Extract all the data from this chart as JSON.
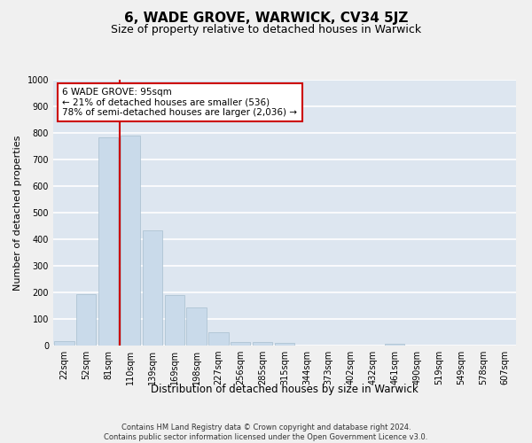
{
  "title": "6, WADE GROVE, WARWICK, CV34 5JZ",
  "subtitle": "Size of property relative to detached houses in Warwick",
  "xlabel": "Distribution of detached houses by size in Warwick",
  "ylabel": "Number of detached properties",
  "categories": [
    "22sqm",
    "52sqm",
    "81sqm",
    "110sqm",
    "139sqm",
    "169sqm",
    "198sqm",
    "227sqm",
    "256sqm",
    "285sqm",
    "315sqm",
    "344sqm",
    "373sqm",
    "402sqm",
    "432sqm",
    "461sqm",
    "490sqm",
    "519sqm",
    "549sqm",
    "578sqm",
    "607sqm"
  ],
  "values": [
    18,
    195,
    785,
    790,
    435,
    190,
    145,
    50,
    15,
    12,
    10,
    0,
    0,
    0,
    0,
    8,
    0,
    0,
    0,
    0,
    0
  ],
  "bar_color": "#c9daea",
  "bar_edge_color": "#a8bfce",
  "background_color": "#dde6f0",
  "grid_color": "#ffffff",
  "vline_color": "#cc0000",
  "annotation_text": "6 WADE GROVE: 95sqm\n← 21% of detached houses are smaller (536)\n78% of semi-detached houses are larger (2,036) →",
  "annotation_box_color": "#ffffff",
  "annotation_box_edge": "#cc0000",
  "ylim": [
    0,
    1000
  ],
  "yticks": [
    0,
    100,
    200,
    300,
    400,
    500,
    600,
    700,
    800,
    900,
    1000
  ],
  "footnote": "Contains HM Land Registry data © Crown copyright and database right 2024.\nContains public sector information licensed under the Open Government Licence v3.0.",
  "title_fontsize": 11,
  "subtitle_fontsize": 9,
  "xlabel_fontsize": 8.5,
  "ylabel_fontsize": 8,
  "tick_fontsize": 7,
  "annotation_fontsize": 7.5,
  "footnote_fontsize": 6
}
